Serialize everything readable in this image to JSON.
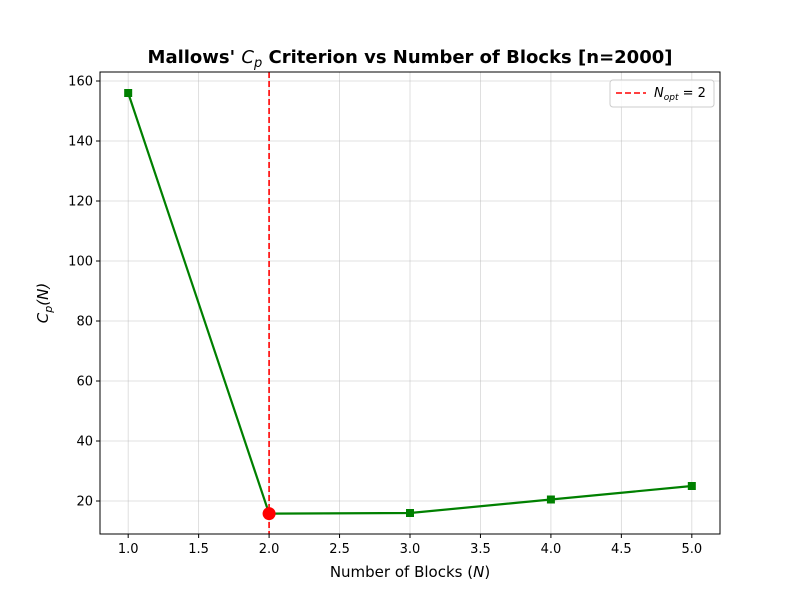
{
  "chart_data": {
    "type": "line",
    "title": {
      "prefix": "Mallows' ",
      "var_main": "C",
      "var_sub": "p",
      "suffix": " Criterion vs Number of Blocks [n=2000]"
    },
    "xlabel": {
      "prefix": "Number of Blocks (",
      "var": "N",
      "suffix": ")"
    },
    "ylabel": {
      "main": "C",
      "sub": "p",
      "suffix": "(N)"
    },
    "xlim": [
      0.8,
      5.2
    ],
    "ylim": [
      9,
      163
    ],
    "x_ticks": [
      1.0,
      1.5,
      2.0,
      2.5,
      3.0,
      3.5,
      4.0,
      4.5,
      5.0
    ],
    "x_tick_labels": [
      "1.0",
      "1.5",
      "2.0",
      "2.5",
      "3.0",
      "3.5",
      "4.0",
      "4.5",
      "5.0"
    ],
    "y_ticks": [
      20,
      40,
      60,
      80,
      100,
      120,
      140,
      160
    ],
    "y_tick_labels": [
      "20",
      "40",
      "60",
      "80",
      "100",
      "120",
      "140",
      "160"
    ],
    "grid": true,
    "series": [
      {
        "x": [
          1,
          2,
          3,
          4,
          5
        ],
        "values": [
          156,
          15.8,
          16,
          20.5,
          25
        ],
        "color": "#008000",
        "marker": "square"
      }
    ],
    "optimum": {
      "x": 2,
      "y": 15.8,
      "color": "#ff0000"
    },
    "vline": {
      "x": 2,
      "color": "#ff0000",
      "style": "dashed"
    },
    "legend": {
      "position": "top-right",
      "entries": [
        {
          "label_main": "N",
          "label_sub": "opt",
          "label_suffix": " = 2",
          "color": "#ff0000",
          "style": "dashed"
        }
      ]
    }
  }
}
